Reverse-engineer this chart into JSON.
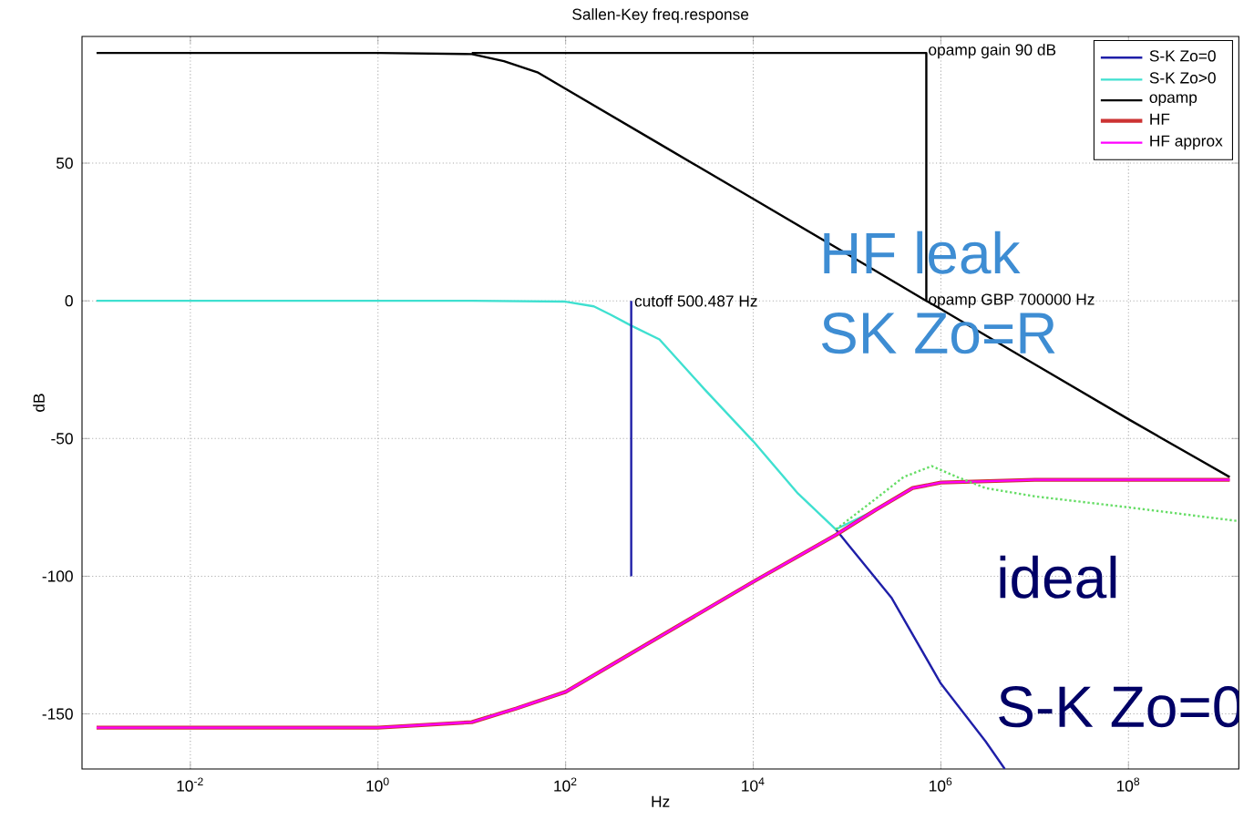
{
  "chart_data": {
    "type": "line",
    "title": "Sallen-Key freq.response",
    "xlabel": "Hz",
    "ylabel": "dB",
    "log": "x",
    "xlim": [
      0.0007,
      1500000000
    ],
    "ylim": [
      -170,
      96
    ],
    "xticks": [
      {
        "value": 0.01,
        "label": "10$^{-2}$"
      },
      {
        "value": 1,
        "label": "10$^{0}$"
      },
      {
        "value": 100,
        "label": "10$^{2}$"
      },
      {
        "value": 10000,
        "label": "10$^{4}$"
      },
      {
        "value": 1000000,
        "label": "10$^{6}$"
      },
      {
        "value": 100000000,
        "label": "10$^{8}$"
      }
    ],
    "yticks": [
      -150,
      -100,
      -50,
      0,
      50
    ],
    "grid": true,
    "legend": "top right",
    "line_style": "solid",
    "series": [
      {
        "name": "S-K Zo=0",
        "color": "#1f1fa8",
        "x": [
          76000,
          100000,
          300000,
          1000000,
          3000000,
          4800000
        ],
        "values": [
          -83,
          -88,
          -108,
          -139,
          -160,
          -170
        ]
      },
      {
        "name": "S-K Zo>0",
        "color": "#3fe0d0",
        "x": [
          0.001,
          1,
          10,
          100,
          200,
          300,
          500,
          1000,
          3000,
          10000,
          30000,
          76000,
          100000,
          200000
        ],
        "values": [
          0,
          0,
          0,
          -0.3,
          -2,
          -5,
          -9,
          -14,
          -32,
          -51,
          -70,
          -83,
          -81,
          -76
        ]
      },
      {
        "name": "opamp",
        "color": "#000000",
        "x": [
          0.001,
          1,
          10,
          22,
          50,
          100,
          1000,
          10000,
          100000,
          700000,
          1000000,
          10000000,
          100000000,
          1200000000
        ],
        "values": [
          90,
          90,
          89.6,
          87,
          83,
          77,
          57,
          37,
          17,
          0,
          -3,
          -23,
          -43,
          -64
        ]
      },
      {
        "name": "HF",
        "color": "#cc3333",
        "x": [
          0.001,
          1,
          10,
          30,
          100,
          1000,
          10000,
          76000,
          200000,
          500000,
          1000000,
          10000000,
          1200000000
        ],
        "values": [
          -155,
          -155,
          -153,
          -148,
          -142,
          -122,
          -102,
          -85,
          -76,
          -68,
          -66,
          -65,
          -65
        ]
      },
      {
        "name": "HF approx",
        "color": "#ff00ff",
        "x": [
          0.001,
          1,
          10,
          30,
          100,
          1000,
          10000,
          76000,
          200000,
          500000,
          1000000,
          10000000,
          1200000000
        ],
        "values": [
          -155,
          -155,
          -153,
          -148,
          -142,
          -122,
          -102,
          -85,
          -76,
          -68,
          -66,
          -65,
          -65
        ]
      },
      {
        "color": "#66dd66",
        "line_style": "dotted",
        "x": [
          76000,
          200000,
          400000,
          800000,
          1500000,
          3000000,
          10000000,
          100000000,
          1500000000
        ],
        "values": [
          -83,
          -72,
          -64,
          -60,
          -64,
          -68,
          -71,
          -75,
          -80
        ]
      },
      {
        "color": "#000000",
        "x": [
          10,
          700000,
          700000
        ],
        "values": [
          90,
          90,
          0
        ]
      },
      {
        "color": "#1f1fa8",
        "x": [
          500.487,
          500.487
        ],
        "values": [
          0,
          -100
        ]
      }
    ],
    "annotations": [
      "opamp gain 90 dB",
      "cutoff 500.487 Hz",
      "opamp GBP 700000 Hz",
      "HF leak",
      "SK Zo=R",
      "ideal",
      "S-K Zo=0"
    ]
  }
}
